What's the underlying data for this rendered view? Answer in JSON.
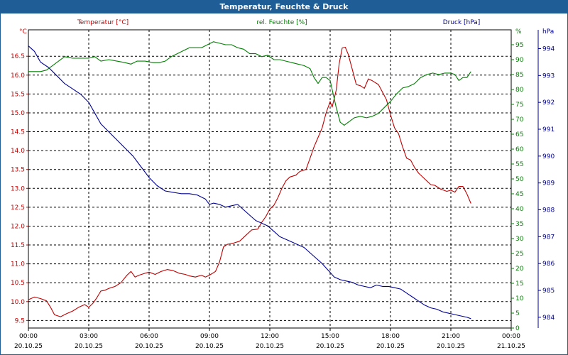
{
  "window": {
    "title": "Temperatur, Feuchte & Druck"
  },
  "chart_data": {
    "type": "line",
    "title": "Temperatur, Feuchte & Druck",
    "x_range": [
      0,
      24
    ],
    "x_ticks": [
      {
        "t": 0,
        "time": "00:00",
        "date": "20.10.25"
      },
      {
        "t": 3,
        "time": "03:00",
        "date": "20.10.25"
      },
      {
        "t": 6,
        "time": "06:00",
        "date": "20.10.25"
      },
      {
        "t": 9,
        "time": "09:00",
        "date": "20.10.25"
      },
      {
        "t": 12,
        "time": "12:00",
        "date": "20.10.25"
      },
      {
        "t": 15,
        "time": "15:00",
        "date": "20.10.25"
      },
      {
        "t": 18,
        "time": "18:00",
        "date": "20.10.25"
      },
      {
        "t": 21,
        "time": "21:00",
        "date": "20.10.25"
      },
      {
        "t": 24,
        "time": "00:00",
        "date": "21.10.25"
      }
    ],
    "axes": {
      "temperature": {
        "label": "Temperatur [°C]",
        "unit": "°C",
        "color": "#c00000",
        "range": [
          9.3,
          17.2
        ],
        "ticks": [
          "9.5",
          "10.0",
          "10.5",
          "11.0",
          "11.5",
          "12.0",
          "12.5",
          "13.0",
          "13.5",
          "14.0",
          "14.5",
          "15.0",
          "15.5",
          "16.0",
          "16.5"
        ]
      },
      "humidity": {
        "label": "rel. Feuchte [%]",
        "unit": "%",
        "color": "#008000",
        "range": [
          0,
          100
        ],
        "ticks": [
          "0",
          "5",
          "10",
          "15",
          "20",
          "25",
          "30",
          "35",
          "40",
          "45",
          "50",
          "55",
          "60",
          "65",
          "70",
          "75",
          "80",
          "85",
          "90",
          "95"
        ]
      },
      "pressure": {
        "label": "Druck [hPa]",
        "unit": "hPa",
        "color": "#000090",
        "range": [
          983.6,
          994.7
        ],
        "ticks": [
          "984",
          "985",
          "986",
          "987",
          "988",
          "989",
          "990",
          "991",
          "992",
          "993",
          "994"
        ]
      }
    },
    "series": [
      {
        "name": "Temperatur",
        "axis": "temperature",
        "color": "#c00000",
        "points": [
          [
            0,
            10.05
          ],
          [
            0.3,
            10.12
          ],
          [
            0.6,
            10.08
          ],
          [
            0.9,
            10.02
          ],
          [
            1.1,
            9.85
          ],
          [
            1.3,
            9.65
          ],
          [
            1.6,
            9.6
          ],
          [
            1.9,
            9.68
          ],
          [
            2.2,
            9.75
          ],
          [
            2.5,
            9.85
          ],
          [
            2.8,
            9.92
          ],
          [
            3.0,
            9.85
          ],
          [
            3.2,
            9.95
          ],
          [
            3.4,
            10.1
          ],
          [
            3.6,
            10.28
          ],
          [
            3.8,
            10.3
          ],
          [
            4.0,
            10.35
          ],
          [
            4.3,
            10.4
          ],
          [
            4.6,
            10.5
          ],
          [
            4.9,
            10.7
          ],
          [
            5.1,
            10.8
          ],
          [
            5.3,
            10.65
          ],
          [
            5.5,
            10.7
          ],
          [
            5.8,
            10.75
          ],
          [
            6.0,
            10.78
          ],
          [
            6.3,
            10.72
          ],
          [
            6.6,
            10.8
          ],
          [
            6.9,
            10.85
          ],
          [
            7.2,
            10.82
          ],
          [
            7.5,
            10.75
          ],
          [
            7.8,
            10.72
          ],
          [
            8.0,
            10.68
          ],
          [
            8.3,
            10.65
          ],
          [
            8.6,
            10.7
          ],
          [
            8.8,
            10.65
          ],
          [
            9.0,
            10.7
          ],
          [
            9.3,
            10.8
          ],
          [
            9.5,
            11.05
          ],
          [
            9.7,
            11.45
          ],
          [
            9.9,
            11.52
          ],
          [
            10.2,
            11.55
          ],
          [
            10.5,
            11.6
          ],
          [
            10.8,
            11.75
          ],
          [
            11.1,
            11.9
          ],
          [
            11.4,
            11.92
          ],
          [
            11.6,
            12.1
          ],
          [
            11.8,
            12.25
          ],
          [
            12.0,
            12.45
          ],
          [
            12.2,
            12.55
          ],
          [
            12.4,
            12.75
          ],
          [
            12.6,
            13.0
          ],
          [
            12.8,
            13.2
          ],
          [
            13.0,
            13.3
          ],
          [
            13.3,
            13.35
          ],
          [
            13.5,
            13.45
          ],
          [
            13.8,
            13.5
          ],
          [
            14.0,
            13.8
          ],
          [
            14.2,
            14.1
          ],
          [
            14.4,
            14.35
          ],
          [
            14.6,
            14.6
          ],
          [
            14.8,
            15.0
          ],
          [
            15.0,
            15.3
          ],
          [
            15.1,
            15.15
          ],
          [
            15.3,
            15.6
          ],
          [
            15.45,
            16.3
          ],
          [
            15.6,
            16.72
          ],
          [
            15.75,
            16.74
          ],
          [
            15.9,
            16.55
          ],
          [
            16.1,
            16.15
          ],
          [
            16.3,
            15.75
          ],
          [
            16.5,
            15.72
          ],
          [
            16.7,
            15.65
          ],
          [
            16.9,
            15.9
          ],
          [
            17.1,
            15.85
          ],
          [
            17.4,
            15.75
          ],
          [
            17.6,
            15.55
          ],
          [
            17.8,
            15.35
          ],
          [
            18.0,
            14.95
          ],
          [
            18.2,
            14.6
          ],
          [
            18.4,
            14.45
          ],
          [
            18.6,
            14.1
          ],
          [
            18.8,
            13.8
          ],
          [
            19.0,
            13.75
          ],
          [
            19.2,
            13.55
          ],
          [
            19.4,
            13.4
          ],
          [
            19.7,
            13.25
          ],
          [
            20.0,
            13.1
          ],
          [
            20.2,
            13.08
          ],
          [
            20.5,
            12.98
          ],
          [
            20.8,
            12.92
          ],
          [
            21.0,
            12.95
          ],
          [
            21.2,
            12.9
          ],
          [
            21.4,
            13.05
          ],
          [
            21.6,
            13.05
          ],
          [
            21.8,
            12.85
          ],
          [
            22.0,
            12.6
          ]
        ]
      },
      {
        "name": "rel. Feuchte",
        "axis": "humidity",
        "color": "#008000",
        "points": [
          [
            0,
            86
          ],
          [
            0.3,
            86
          ],
          [
            0.6,
            86
          ],
          [
            0.9,
            86.5
          ],
          [
            1.2,
            88
          ],
          [
            1.5,
            89.5
          ],
          [
            1.8,
            91
          ],
          [
            2.2,
            90.5
          ],
          [
            2.6,
            90.5
          ],
          [
            3.0,
            90.5
          ],
          [
            3.3,
            91
          ],
          [
            3.6,
            89.5
          ],
          [
            4.0,
            90
          ],
          [
            4.4,
            89.5
          ],
          [
            4.8,
            89
          ],
          [
            5.1,
            88.5
          ],
          [
            5.4,
            89.5
          ],
          [
            5.8,
            89.5
          ],
          [
            6.2,
            89
          ],
          [
            6.5,
            89
          ],
          [
            6.8,
            89.5
          ],
          [
            7.1,
            91
          ],
          [
            7.4,
            92
          ],
          [
            7.7,
            93
          ],
          [
            8.0,
            94
          ],
          [
            8.3,
            94
          ],
          [
            8.6,
            94
          ],
          [
            8.9,
            95
          ],
          [
            9.2,
            96
          ],
          [
            9.5,
            95.5
          ],
          [
            9.8,
            95
          ],
          [
            10.1,
            95
          ],
          [
            10.4,
            94
          ],
          [
            10.7,
            93.5
          ],
          [
            11.0,
            92
          ],
          [
            11.3,
            92
          ],
          [
            11.6,
            91
          ],
          [
            11.9,
            91.5
          ],
          [
            12.2,
            90
          ],
          [
            12.5,
            90
          ],
          [
            12.8,
            89.5
          ],
          [
            13.1,
            89
          ],
          [
            13.4,
            88.5
          ],
          [
            13.7,
            88
          ],
          [
            14.0,
            87
          ],
          [
            14.2,
            84
          ],
          [
            14.4,
            82
          ],
          [
            14.6,
            84
          ],
          [
            14.8,
            84
          ],
          [
            15.0,
            83
          ],
          [
            15.1,
            80
          ],
          [
            15.3,
            74
          ],
          [
            15.5,
            69
          ],
          [
            15.7,
            68
          ],
          [
            15.9,
            69
          ],
          [
            16.2,
            70.5
          ],
          [
            16.5,
            71
          ],
          [
            16.8,
            70.5
          ],
          [
            17.1,
            71
          ],
          [
            17.4,
            72
          ],
          [
            17.7,
            74
          ],
          [
            18.0,
            76
          ],
          [
            18.3,
            78.5
          ],
          [
            18.6,
            80.5
          ],
          [
            18.9,
            81
          ],
          [
            19.2,
            82
          ],
          [
            19.5,
            84
          ],
          [
            19.8,
            85
          ],
          [
            20.1,
            85.5
          ],
          [
            20.4,
            85
          ],
          [
            20.7,
            85.5
          ],
          [
            21.0,
            85.5
          ],
          [
            21.2,
            85
          ],
          [
            21.4,
            83
          ],
          [
            21.6,
            84
          ],
          [
            21.8,
            84
          ],
          [
            22.0,
            86
          ]
        ]
      },
      {
        "name": "Druck",
        "axis": "pressure",
        "color": "#000090",
        "points": [
          [
            0,
            994.1
          ],
          [
            0.3,
            993.9
          ],
          [
            0.6,
            993.5
          ],
          [
            1.0,
            993.3
          ],
          [
            1.4,
            993.0
          ],
          [
            1.8,
            992.7
          ],
          [
            2.2,
            992.5
          ],
          [
            2.6,
            992.3
          ],
          [
            3.0,
            992.0
          ],
          [
            3.3,
            991.6
          ],
          [
            3.6,
            991.2
          ],
          [
            4.0,
            990.9
          ],
          [
            4.4,
            990.6
          ],
          [
            4.8,
            990.3
          ],
          [
            5.2,
            990.0
          ],
          [
            5.6,
            989.6
          ],
          [
            6.0,
            989.2
          ],
          [
            6.4,
            988.9
          ],
          [
            6.8,
            988.7
          ],
          [
            7.2,
            988.65
          ],
          [
            7.6,
            988.6
          ],
          [
            8.0,
            988.6
          ],
          [
            8.4,
            988.55
          ],
          [
            8.8,
            988.4
          ],
          [
            9.0,
            988.2
          ],
          [
            9.2,
            988.25
          ],
          [
            9.5,
            988.2
          ],
          [
            9.8,
            988.1
          ],
          [
            10.1,
            988.15
          ],
          [
            10.4,
            988.2
          ],
          [
            10.7,
            988.0
          ],
          [
            11.0,
            987.8
          ],
          [
            11.3,
            987.6
          ],
          [
            11.6,
            987.5
          ],
          [
            11.9,
            987.4
          ],
          [
            12.2,
            987.2
          ],
          [
            12.5,
            987.0
          ],
          [
            12.8,
            986.9
          ],
          [
            13.1,
            986.8
          ],
          [
            13.4,
            986.7
          ],
          [
            13.7,
            986.6
          ],
          [
            14.0,
            986.4
          ],
          [
            14.3,
            986.2
          ],
          [
            14.6,
            986.0
          ],
          [
            14.9,
            985.75
          ],
          [
            15.2,
            985.5
          ],
          [
            15.5,
            985.4
          ],
          [
            15.8,
            985.35
          ],
          [
            16.1,
            985.3
          ],
          [
            16.4,
            985.2
          ],
          [
            16.7,
            985.15
          ],
          [
            17.0,
            985.1
          ],
          [
            17.3,
            985.2
          ],
          [
            17.6,
            985.15
          ],
          [
            17.9,
            985.15
          ],
          [
            18.2,
            985.1
          ],
          [
            18.5,
            985.05
          ],
          [
            18.8,
            984.9
          ],
          [
            19.1,
            984.75
          ],
          [
            19.4,
            984.6
          ],
          [
            19.7,
            984.45
          ],
          [
            20.0,
            984.35
          ],
          [
            20.3,
            984.3
          ],
          [
            20.6,
            984.2
          ],
          [
            20.9,
            984.15
          ],
          [
            21.2,
            984.1
          ],
          [
            21.5,
            984.05
          ],
          [
            21.8,
            984.0
          ],
          [
            22.0,
            983.95
          ]
        ]
      }
    ]
  }
}
